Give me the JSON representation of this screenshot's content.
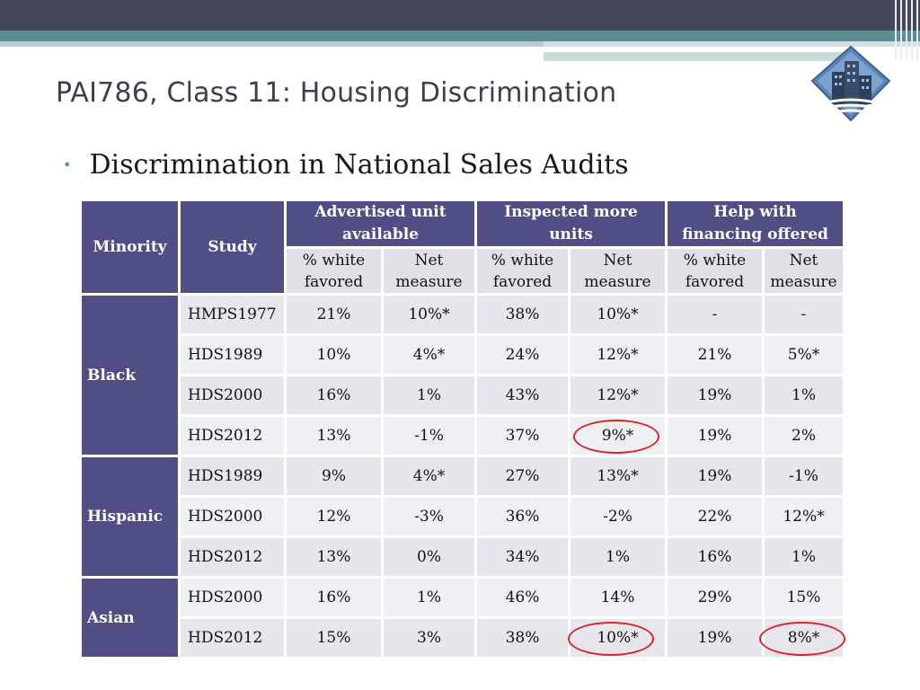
{
  "header": {
    "title": "PAI786, Class 11:  Housing Discrimination"
  },
  "bullet": {
    "text": "Discrimination in National Sales Audits"
  },
  "table": {
    "col_minority": "Minority",
    "col_study": "Study",
    "groups": [
      {
        "label_line1": "Advertised unit",
        "label_line2": "available"
      },
      {
        "label_line1": "Inspected more",
        "label_line2": "units"
      },
      {
        "label_line1": "Help with",
        "label_line2": "financing offered"
      }
    ],
    "sub_white_line1": "% white",
    "sub_white_line2": "favored",
    "sub_net_line1": "Net",
    "sub_net_line2": "measure",
    "sections": [
      {
        "minority": "Black",
        "rows": [
          {
            "study": "HMPS1977",
            "v": [
              "21%",
              "10%*",
              "38%",
              "10%*",
              "-",
              "-"
            ]
          },
          {
            "study": "HDS1989",
            "v": [
              "10%",
              "4%*",
              "24%",
              "12%*",
              "21%",
              "5%*"
            ]
          },
          {
            "study": "HDS2000",
            "v": [
              "16%",
              "1%",
              "43%",
              "12%*",
              "19%",
              "1%"
            ]
          },
          {
            "study": "HDS2012",
            "v": [
              "13%",
              "-1%",
              "37%",
              "9%*",
              "19%",
              "2%"
            ]
          }
        ]
      },
      {
        "minority": "Hispanic",
        "rows": [
          {
            "study": "HDS1989",
            "v": [
              "9%",
              "4%*",
              "27%",
              "13%*",
              "19%",
              "-1%"
            ]
          },
          {
            "study": "HDS2000",
            "v": [
              "12%",
              "-3%",
              "36%",
              "-2%",
              "22%",
              "12%*"
            ]
          },
          {
            "study": "HDS2012",
            "v": [
              "13%",
              "0%",
              "34%",
              "1%",
              "16%",
              "1%"
            ]
          }
        ]
      },
      {
        "minority": "Asian",
        "rows": [
          {
            "study": "HDS2000",
            "v": [
              "16%",
              "1%",
              "46%",
              "14%",
              "29%",
              "15%"
            ]
          },
          {
            "study": "HDS2012",
            "v": [
              "15%",
              "3%",
              "38%",
              "10%*",
              "19%",
              "8%*"
            ]
          }
        ]
      }
    ]
  }
}
